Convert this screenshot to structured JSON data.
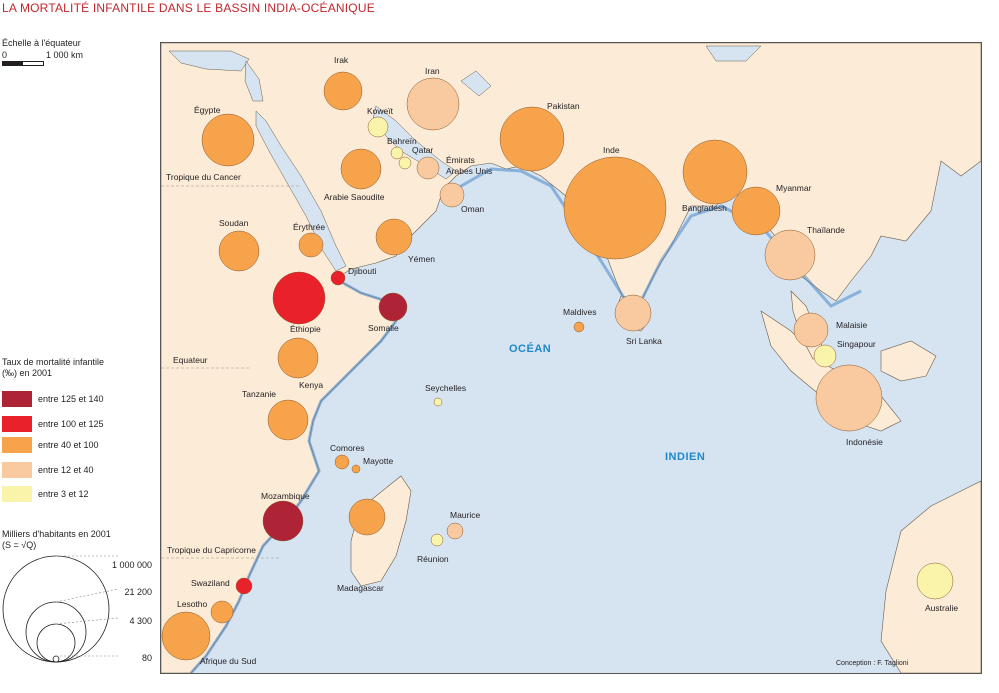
{
  "title": "LA MORTALITÉ INFANTILE DANS LE BASSIN INDIA-OCÉANIQUE",
  "scale": {
    "label": "Échelle à l'équateur",
    "start": "0",
    "end": "1 000 km"
  },
  "legend_rate": {
    "title_line1": "Taux de mortalité infantile",
    "title_line2": "(‰)  en 2001",
    "classes": [
      {
        "label": "entre 125 et 140",
        "color": "#ae2335"
      },
      {
        "label": "entre 100 et 125",
        "color": "#e8212a"
      },
      {
        "label": "entre 40 et 100",
        "color": "#f6a34c"
      },
      {
        "label": "entre 12 et 40",
        "color": "#f9c9a0"
      },
      {
        "label": "entre 3 et 12",
        "color": "#f9f4aa"
      }
    ]
  },
  "legend_size": {
    "title_line1": "Milliers d'habitants en 2001",
    "title_line2": "(S = √Q)",
    "values": [
      "1 000 000",
      "21 200",
      "4 300",
      "80"
    ]
  },
  "map": {
    "lines": [
      "Tropique du Cancer",
      "Equateur",
      "Tropique du Capricorne"
    ],
    "ocean_line1": "OCÉAN",
    "ocean_line2": "INDIEN",
    "credit": "Conception : F. Taglioni",
    "countries": [
      {
        "name": "Irak",
        "cls": 2
      },
      {
        "name": "Iran",
        "cls": 3
      },
      {
        "name": "Koweït",
        "cls": 4
      },
      {
        "name": "Bahreïn",
        "cls": 4
      },
      {
        "name": "Qatar",
        "cls": 4
      },
      {
        "name": "Émirats",
        "name2": "Arabes Unis",
        "cls": 3
      },
      {
        "name": "Oman",
        "cls": 3
      },
      {
        "name": "Égypte",
        "cls": 2
      },
      {
        "name": "Arabie Saoudite",
        "cls": 2
      },
      {
        "name": "Pakistan",
        "cls": 2
      },
      {
        "name": "Inde",
        "cls": 2
      },
      {
        "name": "Bangladesh",
        "cls": 2
      },
      {
        "name": "Myanmar",
        "cls": 2
      },
      {
        "name": "Thaïlande",
        "cls": 3
      },
      {
        "name": "Soudan",
        "cls": 2
      },
      {
        "name": "Érythrée",
        "cls": 2
      },
      {
        "name": "Yémen",
        "cls": 2
      },
      {
        "name": "Djibouti",
        "cls": 1
      },
      {
        "name": "Éthiopie",
        "cls": 1
      },
      {
        "name": "Somalie",
        "cls": 0
      },
      {
        "name": "Maldives",
        "cls": 2
      },
      {
        "name": "Sri Lanka",
        "cls": 3
      },
      {
        "name": "Malaisie",
        "cls": 3
      },
      {
        "name": "Singapour",
        "cls": 4
      },
      {
        "name": "Indonésie",
        "cls": 3
      },
      {
        "name": "Kenya",
        "cls": 2
      },
      {
        "name": "Tanzanie",
        "cls": 2
      },
      {
        "name": "Seychelles",
        "cls": 4
      },
      {
        "name": "Comores",
        "cls": 2
      },
      {
        "name": "Mayotte",
        "cls": 2
      },
      {
        "name": "Mozambique",
        "cls": 0
      },
      {
        "name": "Madagascar",
        "cls": 2
      },
      {
        "name": "Maurice",
        "cls": 3
      },
      {
        "name": "Réunion",
        "cls": 4
      },
      {
        "name": "Swaziland",
        "cls": 1
      },
      {
        "name": "Lesotho",
        "cls": 2
      },
      {
        "name": "Afrique du Sud",
        "cls": 2
      },
      {
        "name": "Australie",
        "cls": 4
      }
    ]
  }
}
